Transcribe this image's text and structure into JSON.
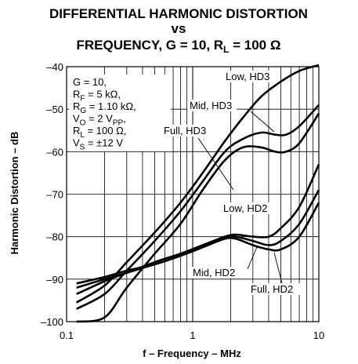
{
  "chart_data": {
    "type": "line",
    "title_line1": "DIFFERENTIAL HARMONIC DISTORTION",
    "title_line2": "vs",
    "title_line3_prefix": "FREQUENCY, G = 10, R",
    "title_line3_sub": "L",
    "title_line3_suffix": " = 100 Ω",
    "xlabel": "f – Frequency – MHz",
    "ylabel": "Harmonic Distortion – dB",
    "x_scale": "log",
    "xlim": [
      0.1,
      10
    ],
    "ylim": [
      -100,
      -40
    ],
    "x_ticks": [
      {
        "value": 0.1,
        "label": "0.1"
      },
      {
        "value": 1,
        "label": "1"
      },
      {
        "value": 10,
        "label": "10"
      }
    ],
    "y_ticks": [
      {
        "value": -40,
        "label": "–40"
      },
      {
        "value": -50,
        "label": "–50"
      },
      {
        "value": -60,
        "label": "–60"
      },
      {
        "value": -70,
        "label": "–70"
      },
      {
        "value": -80,
        "label": "–80"
      },
      {
        "value": -90,
        "label": "–90"
      },
      {
        "value": -100,
        "label": "–100"
      }
    ],
    "grid": true,
    "conditions": [
      {
        "main": "G = 10,",
        "sub": "",
        "rest": ""
      },
      {
        "main": "R",
        "sub": "F",
        "rest": " = 5 kΩ,"
      },
      {
        "main": "R",
        "sub": "G",
        "rest": " = 1.10 kΩ,"
      },
      {
        "main": "V",
        "sub": "O",
        "rest": " = 2 V",
        "sub2": "PP",
        "rest2": ","
      },
      {
        "main": "R",
        "sub": "L",
        "rest": " = 100 Ω,"
      },
      {
        "main": "V",
        "sub": "S",
        "rest": " = ±12 V"
      }
    ],
    "series": [
      {
        "name": "Low, HD3",
        "x": [
          0.12,
          0.2,
          0.3,
          0.5,
          0.8,
          1.2,
          1.8,
          2.5,
          3.5,
          5,
          7,
          10
        ],
        "y": [
          -95.5,
          -91.5,
          -86,
          -79,
          -72,
          -65,
          -57.5,
          -52,
          -47,
          -43.5,
          -41,
          -39.5
        ]
      },
      {
        "name": "Mid, HD3",
        "x": [
          0.12,
          0.2,
          0.3,
          0.5,
          0.8,
          1.2,
          1.8,
          2.5,
          3.5,
          4.5,
          5.5,
          7,
          10
        ],
        "y": [
          -97,
          -93.5,
          -88,
          -81,
          -74,
          -67,
          -60,
          -57,
          -55.5,
          -56,
          -56,
          -54,
          -49
        ]
      },
      {
        "name": "Full, HD3",
        "x": [
          0.12,
          0.2,
          0.3,
          0.5,
          0.8,
          1.2,
          1.8,
          2.5,
          3.5,
          4.5,
          5.5,
          7,
          10
        ],
        "y": [
          -100,
          -99,
          -92,
          -84,
          -77,
          -69,
          -62,
          -59,
          -59,
          -60,
          -60,
          -58,
          -51
        ]
      },
      {
        "name": "Low, HD2",
        "x": [
          0.12,
          0.2,
          0.3,
          0.5,
          0.8,
          1.2,
          1.8,
          2.2,
          3,
          4,
          5,
          7,
          10
        ],
        "y": [
          -93.5,
          -90.5,
          -88.5,
          -86,
          -84,
          -82,
          -80,
          -79.5,
          -80,
          -80,
          -78,
          -73,
          -63
        ]
      },
      {
        "name": "Mid, HD2",
        "x": [
          0.12,
          0.2,
          0.3,
          0.5,
          0.8,
          1.2,
          1.8,
          2.2,
          3,
          4,
          5,
          7,
          10
        ],
        "y": [
          -92,
          -90,
          -88.5,
          -86.5,
          -84.5,
          -82.5,
          -80,
          -80,
          -81,
          -82,
          -81,
          -77,
          -69
        ]
      },
      {
        "name": "Full, HD2",
        "x": [
          0.12,
          0.2,
          0.3,
          0.5,
          0.8,
          1.2,
          1.8,
          2.2,
          3,
          4,
          5,
          7,
          10
        ],
        "y": [
          -91,
          -89.5,
          -88,
          -86.5,
          -84.5,
          -82.5,
          -80.5,
          -80.5,
          -82,
          -83,
          -83,
          -80,
          -72
        ]
      }
    ],
    "annotations": [
      {
        "label": "Low, HD3"
      },
      {
        "label": "Mid, HD3"
      },
      {
        "label": "Full, HD3"
      },
      {
        "label": "Low, HD2"
      },
      {
        "label": "Mid, HD2"
      },
      {
        "label": "Full, HD2"
      }
    ]
  }
}
